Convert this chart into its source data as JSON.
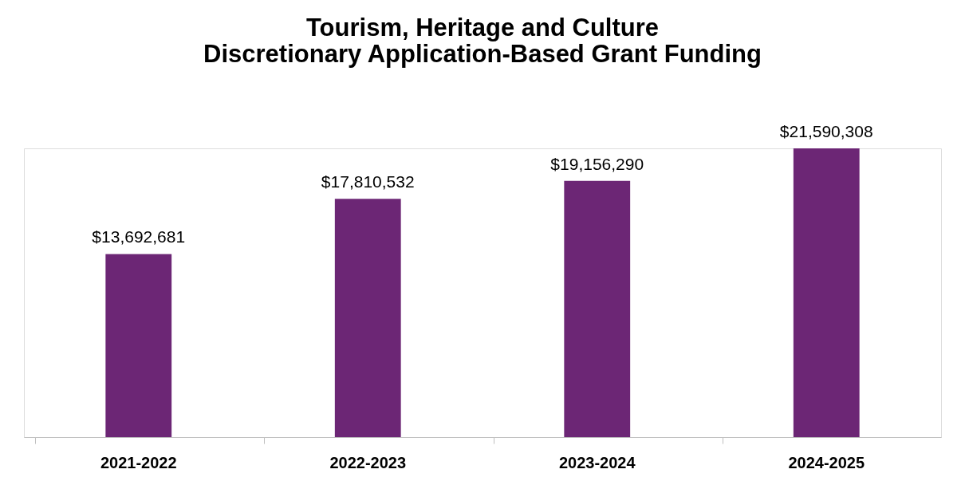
{
  "chart_data": {
    "type": "bar",
    "title": "Tourism, Heritage and Culture\nDiscretionary Application-Based Grant Funding",
    "categories": [
      "2021-2022",
      "2022-2023",
      "2023-2024",
      "2024-2025"
    ],
    "values": [
      13692681,
      17810532,
      19156290,
      21590308
    ],
    "color": "#6c2675",
    "value_labels": [
      "$13,692,681",
      "$17,810,532",
      "$19,156,290",
      "$21,590,308"
    ]
  }
}
